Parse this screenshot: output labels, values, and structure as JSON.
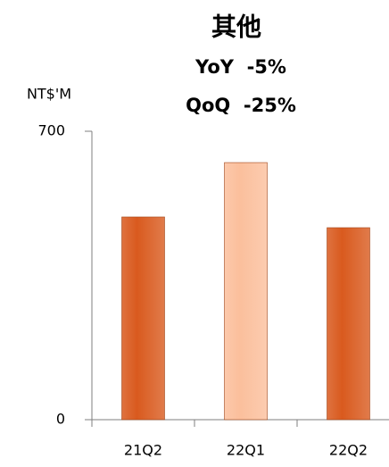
{
  "chart_data": {
    "type": "bar",
    "title": "其他",
    "subtitle": [
      "YoY  -5%",
      "QoQ  -25%"
    ],
    "y_label": "NT$'M",
    "categories": [
      "21Q2",
      "22Q1",
      "22Q2"
    ],
    "values": [
      492,
      624,
      466
    ],
    "colors": [
      "#d95a1e",
      "#fbbf9c",
      "#d95a1e"
    ],
    "ylim": [
      0,
      700
    ],
    "yticks": [
      0,
      700
    ],
    "grid": false
  }
}
